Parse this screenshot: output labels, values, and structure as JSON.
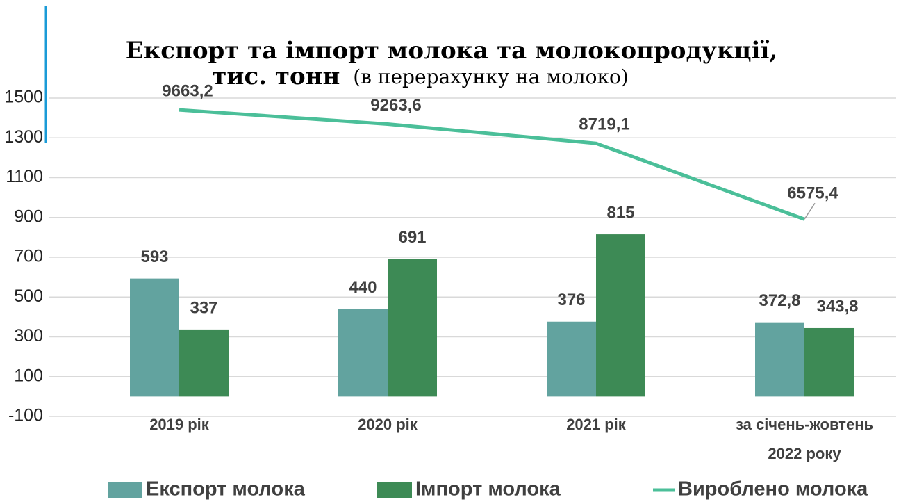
{
  "chart_data": {
    "type": "bar",
    "title": [
      "Експорт та імпорт молока та молокопродукції,",
      "тис. тонн"
    ],
    "subtitle": "(в перерахунку на молоко)",
    "categories": [
      "2019 рік",
      "2020 рік",
      "2021 рік",
      "за січень-жовтень 2022 року"
    ],
    "series": [
      {
        "name": "Експорт молока",
        "type": "bar",
        "color": "#62a39f",
        "values": [
          593,
          440,
          376,
          372.8
        ],
        "value_labels": [
          "593",
          "440",
          "376",
          "372,8"
        ]
      },
      {
        "name": "Імпорт молока",
        "type": "bar",
        "color": "#3d8a55",
        "values": [
          337,
          691,
          815,
          343.8
        ],
        "value_labels": [
          "337",
          "691",
          "815",
          "343,8"
        ]
      },
      {
        "name": "Вироблено молока",
        "type": "line",
        "axis": "y2",
        "color": "#4bbf99",
        "values": [
          9663.2,
          9263.6,
          8719.1,
          6575.4
        ],
        "value_labels": [
          "9663,2",
          "9263,6",
          "8719,1",
          "6575,4"
        ]
      }
    ],
    "ylim": [
      -100,
      1500
    ],
    "yticks": [
      -100,
      100,
      300,
      500,
      700,
      900,
      1100,
      1300,
      1500
    ],
    "y2lim": [
      1000,
      10000
    ],
    "grid": true,
    "legend": "bottom"
  }
}
